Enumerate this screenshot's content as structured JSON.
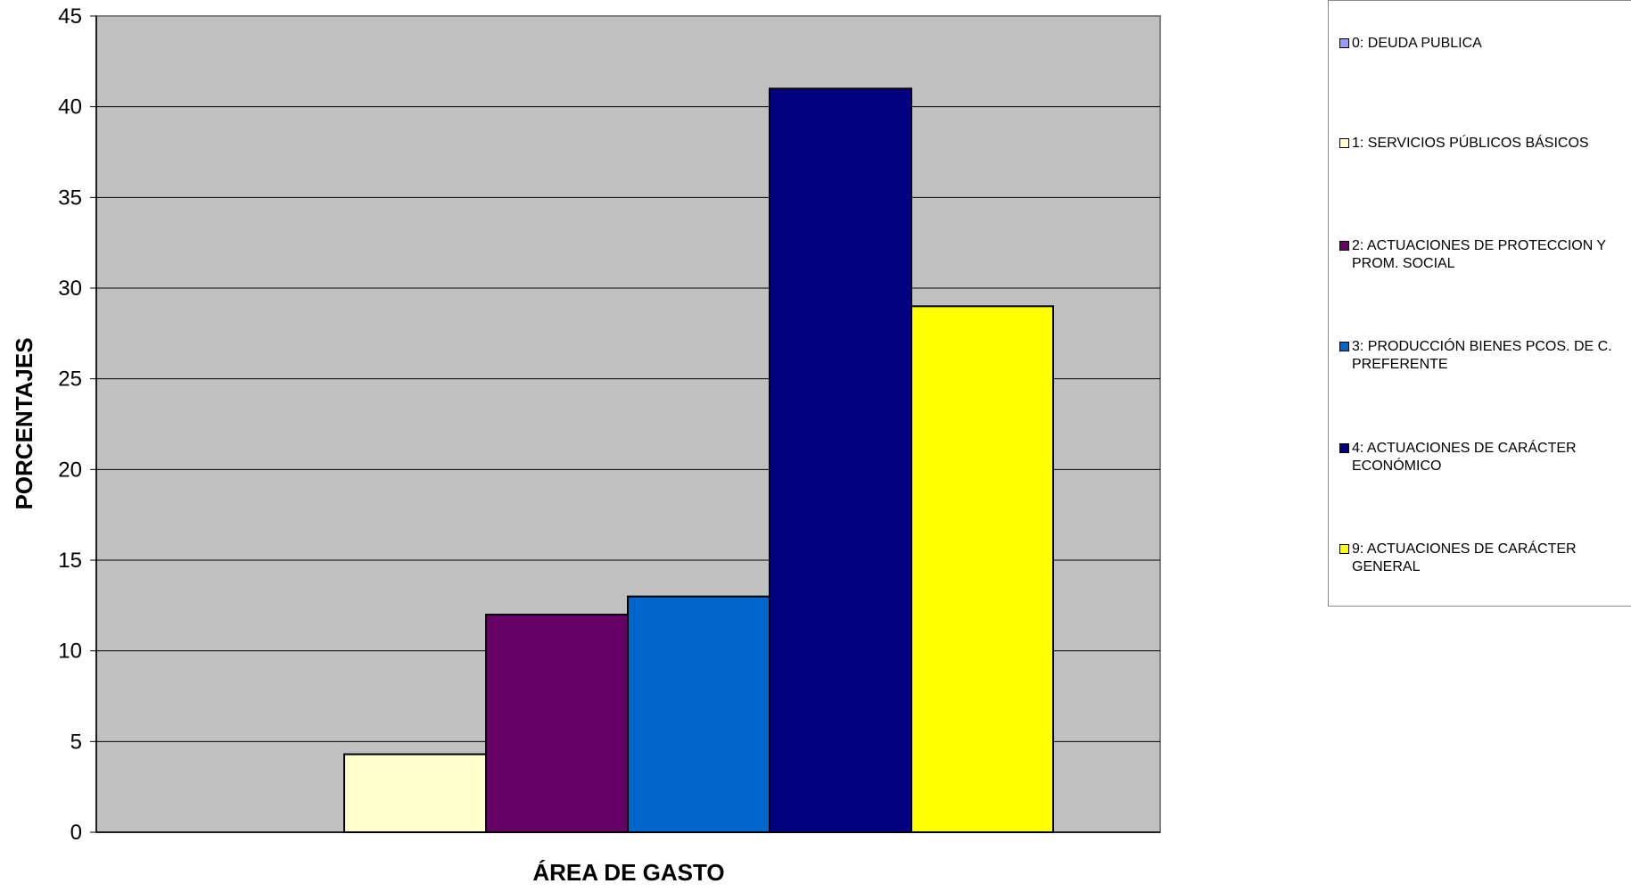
{
  "chart_data": {
    "type": "bar",
    "title": "",
    "xlabel": "ÁREA DE GASTO",
    "ylabel": "PORCENTAJES",
    "ylim": [
      0,
      45
    ],
    "yticks": [
      0,
      5,
      10,
      15,
      20,
      25,
      30,
      35,
      40,
      45
    ],
    "grid": true,
    "legend_position": "right",
    "plot_background": "#C0C0C0",
    "series": [
      {
        "name": "0: DEUDA PUBLICA",
        "value": 0,
        "color": "#9999FF"
      },
      {
        "name": "1: SERVICIOS PÚBLICOS BÁSICOS",
        "value": 4.3,
        "color": "#FFFFCC"
      },
      {
        "name": "2: ACTUACIONES DE PROTECCION Y PROM. SOCIAL",
        "value": 12,
        "color": "#660066"
      },
      {
        "name": "3: PRODUCCIÓN BIENES PCOS. DE C. PREFERENTE",
        "value": 13,
        "color": "#0066CC"
      },
      {
        "name": "4: ACTUACIONES DE CARÁCTER ECONÓMICO",
        "value": 41,
        "color": "#000080"
      },
      {
        "name": "9: ACTUACIONES DE CARÁCTER GENERAL",
        "value": 29,
        "color": "#FFFF00"
      }
    ]
  }
}
